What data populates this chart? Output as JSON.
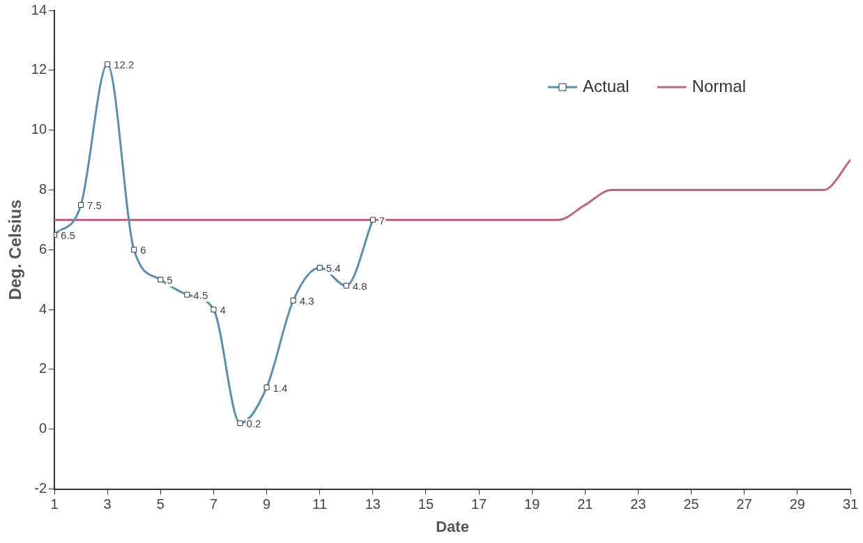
{
  "chart_data": {
    "type": "line",
    "xlabel": "Date",
    "ylabel": "Deg. Celsius",
    "xlim": [
      1,
      31
    ],
    "xticks": [
      1,
      3,
      5,
      7,
      9,
      11,
      13,
      15,
      17,
      19,
      21,
      23,
      25,
      27,
      29,
      31
    ],
    "ylim": [
      -2,
      14
    ],
    "yticks": [
      -2,
      0,
      2,
      4,
      6,
      8,
      10,
      12,
      14
    ],
    "grid": false,
    "legend": "top right",
    "series": [
      {
        "name": "Actual",
        "color": "#5b8fab",
        "marker": "square",
        "x": [
          1,
          2,
          3,
          4,
          5,
          6,
          7,
          8,
          9,
          10,
          11,
          12,
          13
        ],
        "values": [
          6.5,
          7.5,
          12.2,
          6,
          5,
          4.5,
          4,
          0.2,
          1.4,
          4.3,
          5.4,
          4.8,
          7
        ],
        "value_labels": [
          "6.5",
          "7.5",
          "12.2",
          "6",
          "5",
          "4.5",
          "4",
          "0.2",
          "1.4",
          "4.3",
          "5.4",
          "4.8",
          "7"
        ]
      },
      {
        "name": "Normal",
        "color": "#b86b80",
        "marker": "none",
        "x": [
          1,
          3,
          5,
          7,
          9,
          11,
          13,
          15,
          17,
          19,
          20,
          21,
          22,
          23,
          25,
          27,
          29,
          30,
          31
        ],
        "values": [
          7,
          7,
          7,
          7,
          7,
          7,
          7,
          7,
          7,
          7,
          7,
          7.5,
          8,
          8,
          8,
          8,
          8,
          8,
          9
        ]
      }
    ]
  }
}
